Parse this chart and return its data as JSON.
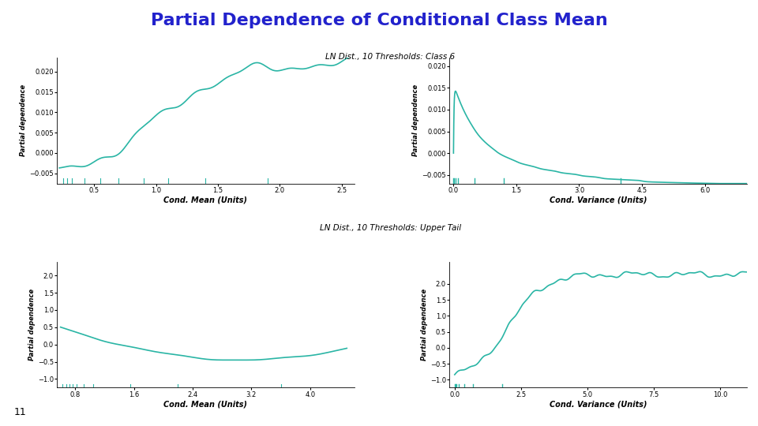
{
  "title": "Partial Dependence of Conditional Class Mean",
  "title_color": "#2222CC",
  "title_fontsize": 16,
  "subtitle_top": "LN Dist., 10 Thresholds: Class 6",
  "subtitle_bottom": "LN Dist., 10 Thresholds: Upper Tail",
  "line_color": "#2ab5a5",
  "line_width": 1.2,
  "ylabel": "Partial dependence",
  "plots": [
    {
      "xlabel": "Cond. Mean (Units)",
      "xlim": [
        0.2,
        2.6
      ],
      "ylim": [
        -0.0075,
        0.0235
      ],
      "yticks": [
        -0.005,
        0.0,
        0.005,
        0.01,
        0.015,
        0.02
      ],
      "xticks": [
        0.5,
        1.0,
        1.5,
        2.0,
        2.5
      ],
      "rug_x": [
        0.25,
        0.28,
        0.32,
        0.42,
        0.55,
        0.7,
        0.9,
        1.1,
        1.4,
        1.9
      ],
      "x_start": 0.22,
      "x_end": 2.55
    },
    {
      "xlabel": "Cond. Variance (Units)",
      "xlim": [
        -0.1,
        7.0
      ],
      "ylim": [
        -0.007,
        0.022
      ],
      "yticks": [
        -0.005,
        0.0,
        0.005,
        0.01,
        0.015,
        0.02
      ],
      "xticks": [
        0.0,
        1.5,
        3.0,
        4.5,
        6.0
      ],
      "rug_x": [
        0.0,
        0.02,
        0.05,
        0.1,
        0.5,
        1.2,
        4.0
      ],
      "x_start": 0.0,
      "x_end": 7.0,
      "y_peak": 0.016
    },
    {
      "xlabel": "Cond. Mean (Units)",
      "xlim": [
        0.55,
        4.6
      ],
      "ylim": [
        -1.25,
        2.4
      ],
      "yticks": [
        -1.0,
        -0.5,
        0.0,
        0.5,
        1.0,
        1.5,
        2.0
      ],
      "xticks": [
        0.8,
        1.6,
        2.4,
        3.2,
        4.0
      ],
      "rug_x": [
        0.62,
        0.68,
        0.72,
        0.76,
        0.82,
        0.92,
        1.05,
        1.55,
        2.2,
        3.6
      ],
      "x_start": 0.6,
      "x_end": 4.5
    },
    {
      "xlabel": "Cond. Variance (Units)",
      "xlim": [
        -0.2,
        11.0
      ],
      "ylim": [
        -1.25,
        2.7
      ],
      "yticks": [
        -1.0,
        -0.5,
        0.0,
        0.5,
        1.0,
        1.5,
        2.0
      ],
      "xticks": [
        0.0,
        2.5,
        5.0,
        7.5,
        10.0
      ],
      "rug_x": [
        0.0,
        0.03,
        0.08,
        0.15,
        0.35,
        0.7,
        1.8
      ],
      "x_start": 0.0,
      "x_end": 11.0
    }
  ],
  "footnote": "11",
  "background_color": "#ffffff",
  "panel_bg": "#f0f0f0"
}
